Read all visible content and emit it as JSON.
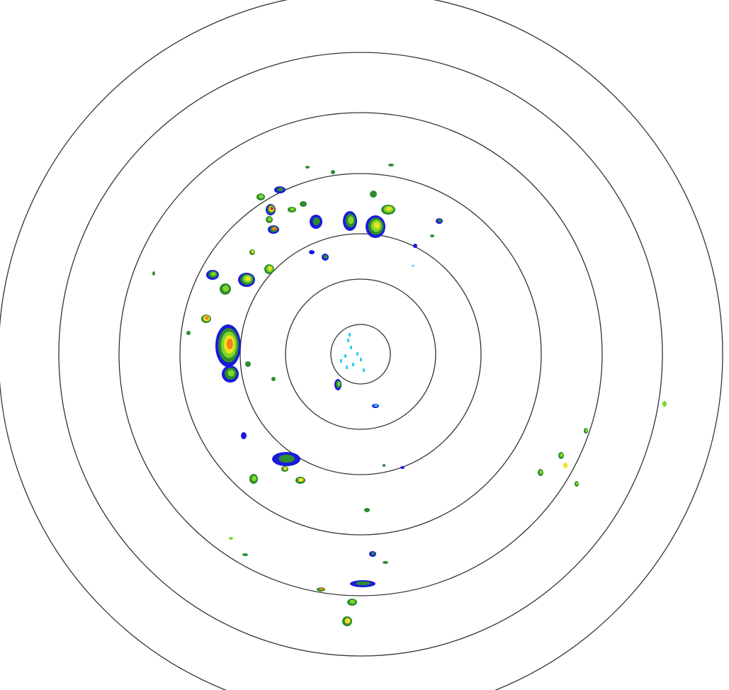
{
  "radar": {
    "range_rings": 7,
    "colors": {
      "ring": "#333333",
      "background": "#ffffff",
      "light_echo": "#1a1adc",
      "moderate_echo": "#2e8b2e",
      "bright_echo": "#7fd82a",
      "heavy_echo": "#f0e020",
      "intense_echo": "#f08020",
      "extreme_echo": "#e02020",
      "clutter": "#30d0f0"
    }
  }
}
